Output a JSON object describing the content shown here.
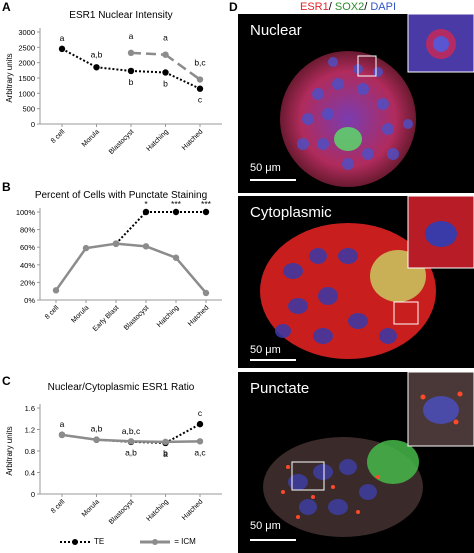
{
  "panels": {
    "A": "A",
    "B": "B",
    "C": "C",
    "D": "D"
  },
  "stain_legend": {
    "esr1": "ESR1",
    "sep1": "/",
    "sox2": "SOX2",
    "sep2": "/",
    "dapi": "DAPI",
    "colors": {
      "esr1": "#e0262b",
      "sox2": "#2e8b2e",
      "dapi": "#2f55c8"
    }
  },
  "micrographs": [
    {
      "label": "Nuclear",
      "scale": "50 μm"
    },
    {
      "label": "Cytoplasmic",
      "scale": "50 μm"
    },
    {
      "label": "Punctate",
      "scale": "50 μm"
    }
  ],
  "legend": {
    "te": "TE",
    "icm": "ICM"
  },
  "colors": {
    "te": "#000000",
    "icm": "#8c8c8c"
  },
  "chart_data": [
    {
      "type": "line",
      "title": "ESR1 Nuclear Intensity",
      "ylabel": "Arbitrary units",
      "ylim": [
        0,
        3000
      ],
      "yticks": [
        "0",
        "500",
        "1000",
        "1500",
        "2000",
        "2500",
        "3000"
      ],
      "categories": [
        "8 cell",
        "Morula",
        "Blastocyst",
        "Hatching",
        "Hatched"
      ],
      "series": [
        {
          "name": "TE",
          "values": [
            2450,
            1850,
            1730,
            1680,
            1150
          ]
        },
        {
          "name": "ICM",
          "values": [
            null,
            null,
            2320,
            2260,
            1450
          ]
        }
      ],
      "annotations": [
        "a",
        "a,b",
        "b",
        "b",
        "c",
        "a",
        "a",
        "b,c"
      ]
    },
    {
      "type": "line",
      "title": "Percent of Cells with Punctate Staining",
      "ylabel": "",
      "ylim": [
        0,
        100
      ],
      "yticks": [
        "0%",
        "20%",
        "40%",
        "60%",
        "80%",
        "100%"
      ],
      "categories": [
        "8 cell",
        "Morula",
        "Early Blast",
        "Blastocyst",
        "Hatching",
        "Hatched"
      ],
      "series": [
        {
          "name": "TE",
          "values": [
            null,
            null,
            64,
            100,
            100,
            100
          ]
        },
        {
          "name": "ICM",
          "values": [
            11,
            59,
            64,
            61,
            48,
            8
          ]
        }
      ],
      "annotations": [
        "*",
        "***",
        "***"
      ]
    },
    {
      "type": "line",
      "title": "Nuclear/Cytoplasmic ESR1 Ratio",
      "ylabel": "Arbitrary units",
      "ylim": [
        0,
        1.6
      ],
      "yticks": [
        "0",
        "0.4",
        "0.8",
        "1.2",
        "1.6"
      ],
      "categories": [
        "8 cell",
        "Morula",
        "Blastocyst",
        "Hatching",
        "Hatched"
      ],
      "series": [
        {
          "name": "TE",
          "values": [
            1.1,
            1.01,
            0.97,
            0.95,
            1.3
          ]
        },
        {
          "name": "ICM",
          "values": [
            1.1,
            1.01,
            0.98,
            0.97,
            0.98
          ]
        }
      ],
      "annotations": [
        "a",
        "a,b",
        "a,b,c",
        "a",
        "c",
        "a,b",
        "b",
        "a,c"
      ]
    }
  ]
}
